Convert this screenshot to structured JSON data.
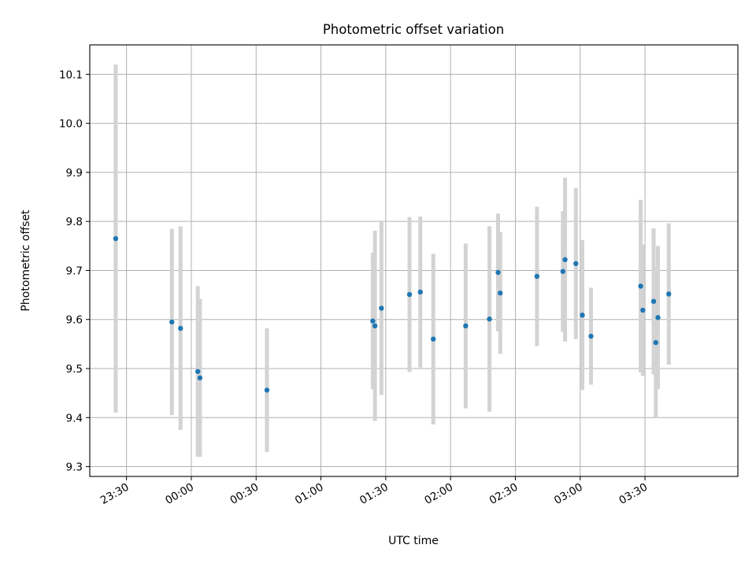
{
  "chart_data": {
    "type": "scatter",
    "title": "Photometric offset variation",
    "xlabel": "UTC time",
    "ylabel": "Photometric offset",
    "x_tick_labels": [
      "23:30",
      "00:00",
      "00:30",
      "01:00",
      "01:30",
      "02:00",
      "02:30",
      "03:00",
      "03:30"
    ],
    "y_tick_labels": [
      "9.3",
      "9.4",
      "9.5",
      "9.6",
      "9.7",
      "9.8",
      "9.9",
      "10.0",
      "10.1"
    ],
    "xlim": [
      "23:13",
      "04:13"
    ],
    "ylim": [
      9.28,
      10.16
    ],
    "grid": true,
    "colors": {
      "point": "#1f77b4",
      "errorbar": "#d3d3d3",
      "grid": "#b0b0b0"
    },
    "points": [
      {
        "t": "23:25",
        "y": 9.765,
        "lo": 9.41,
        "hi": 10.12
      },
      {
        "t": "23:51",
        "y": 9.595,
        "lo": 9.405,
        "hi": 9.785
      },
      {
        "t": "23:55",
        "y": 9.582,
        "lo": 9.375,
        "hi": 9.79
      },
      {
        "t": "00:03",
        "y": 9.494,
        "lo": 9.32,
        "hi": 9.668
      },
      {
        "t": "00:04",
        "y": 9.481,
        "lo": 9.32,
        "hi": 9.642
      },
      {
        "t": "00:35",
        "y": 9.456,
        "lo": 9.33,
        "hi": 9.582
      },
      {
        "t": "01:24",
        "y": 9.597,
        "lo": 9.458,
        "hi": 9.736
      },
      {
        "t": "01:25",
        "y": 9.587,
        "lo": 9.393,
        "hi": 9.781
      },
      {
        "t": "01:28",
        "y": 9.623,
        "lo": 9.446,
        "hi": 9.8
      },
      {
        "t": "01:41",
        "y": 9.651,
        "lo": 9.493,
        "hi": 9.809
      },
      {
        "t": "01:46",
        "y": 9.656,
        "lo": 9.502,
        "hi": 9.81
      },
      {
        "t": "01:52",
        "y": 9.56,
        "lo": 9.386,
        "hi": 9.734
      },
      {
        "t": "02:07",
        "y": 9.587,
        "lo": 9.419,
        "hi": 9.755
      },
      {
        "t": "02:18",
        "y": 9.601,
        "lo": 9.412,
        "hi": 9.79
      },
      {
        "t": "02:22",
        "y": 9.696,
        "lo": 9.576,
        "hi": 9.816
      },
      {
        "t": "02:23",
        "y": 9.654,
        "lo": 9.53,
        "hi": 9.778
      },
      {
        "t": "02:40",
        "y": 9.688,
        "lo": 9.546,
        "hi": 9.83
      },
      {
        "t": "02:52",
        "y": 9.698,
        "lo": 9.575,
        "hi": 9.821
      },
      {
        "t": "02:53",
        "y": 9.722,
        "lo": 9.555,
        "hi": 9.889
      },
      {
        "t": "02:58",
        "y": 9.714,
        "lo": 9.56,
        "hi": 9.868
      },
      {
        "t": "03:01",
        "y": 9.609,
        "lo": 9.456,
        "hi": 9.762
      },
      {
        "t": "03:05",
        "y": 9.566,
        "lo": 9.467,
        "hi": 9.665
      },
      {
        "t": "03:28",
        "y": 9.668,
        "lo": 9.492,
        "hi": 9.844
      },
      {
        "t": "03:29",
        "y": 9.619,
        "lo": 9.485,
        "hi": 9.753
      },
      {
        "t": "03:34",
        "y": 9.637,
        "lo": 9.488,
        "hi": 9.786
      },
      {
        "t": "03:35",
        "y": 9.553,
        "lo": 9.4,
        "hi": 9.706
      },
      {
        "t": "03:36",
        "y": 9.604,
        "lo": 9.458,
        "hi": 9.75
      },
      {
        "t": "03:41",
        "y": 9.652,
        "lo": 9.508,
        "hi": 9.796
      }
    ]
  }
}
